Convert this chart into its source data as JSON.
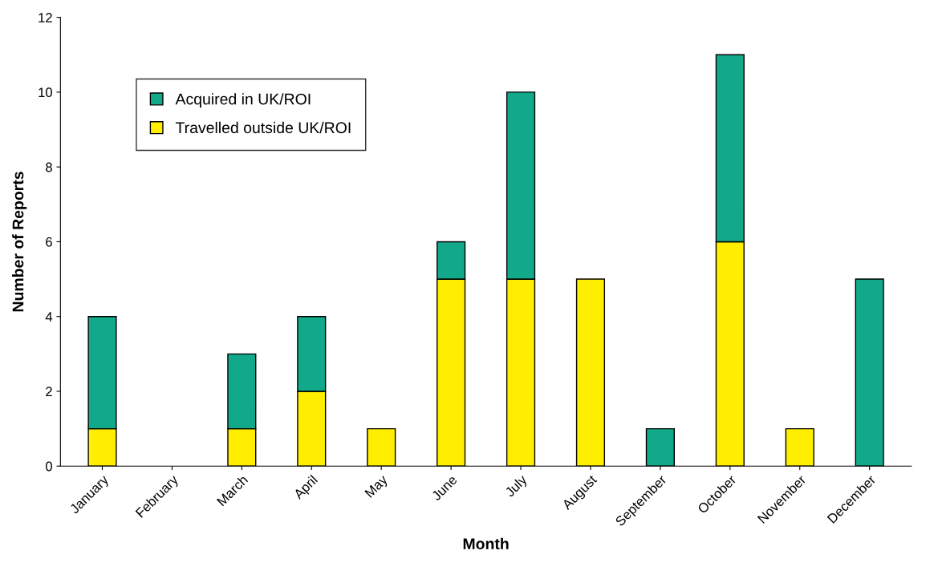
{
  "chart_data": {
    "type": "bar",
    "stacked": true,
    "xlabel": "Month",
    "ylabel": "Number of Reports",
    "categories": [
      "January",
      "February",
      "March",
      "April",
      "May",
      "June",
      "July",
      "August",
      "September",
      "October",
      "November",
      "December"
    ],
    "series": [
      {
        "name": "Travelled outside UK/ROI",
        "color": "#ffee00",
        "values": [
          1,
          0,
          1,
          2,
          1,
          5,
          5,
          5,
          0,
          6,
          1,
          0
        ]
      },
      {
        "name": "Acquired in UK/ROI",
        "color": "#12a88a",
        "values": [
          3,
          0,
          2,
          2,
          0,
          1,
          5,
          0,
          1,
          5,
          0,
          5
        ]
      }
    ],
    "ylim": [
      0,
      12
    ],
    "yticks": [
      0,
      2,
      4,
      6,
      8,
      10,
      12
    ],
    "grid": false,
    "legend": "top left"
  }
}
